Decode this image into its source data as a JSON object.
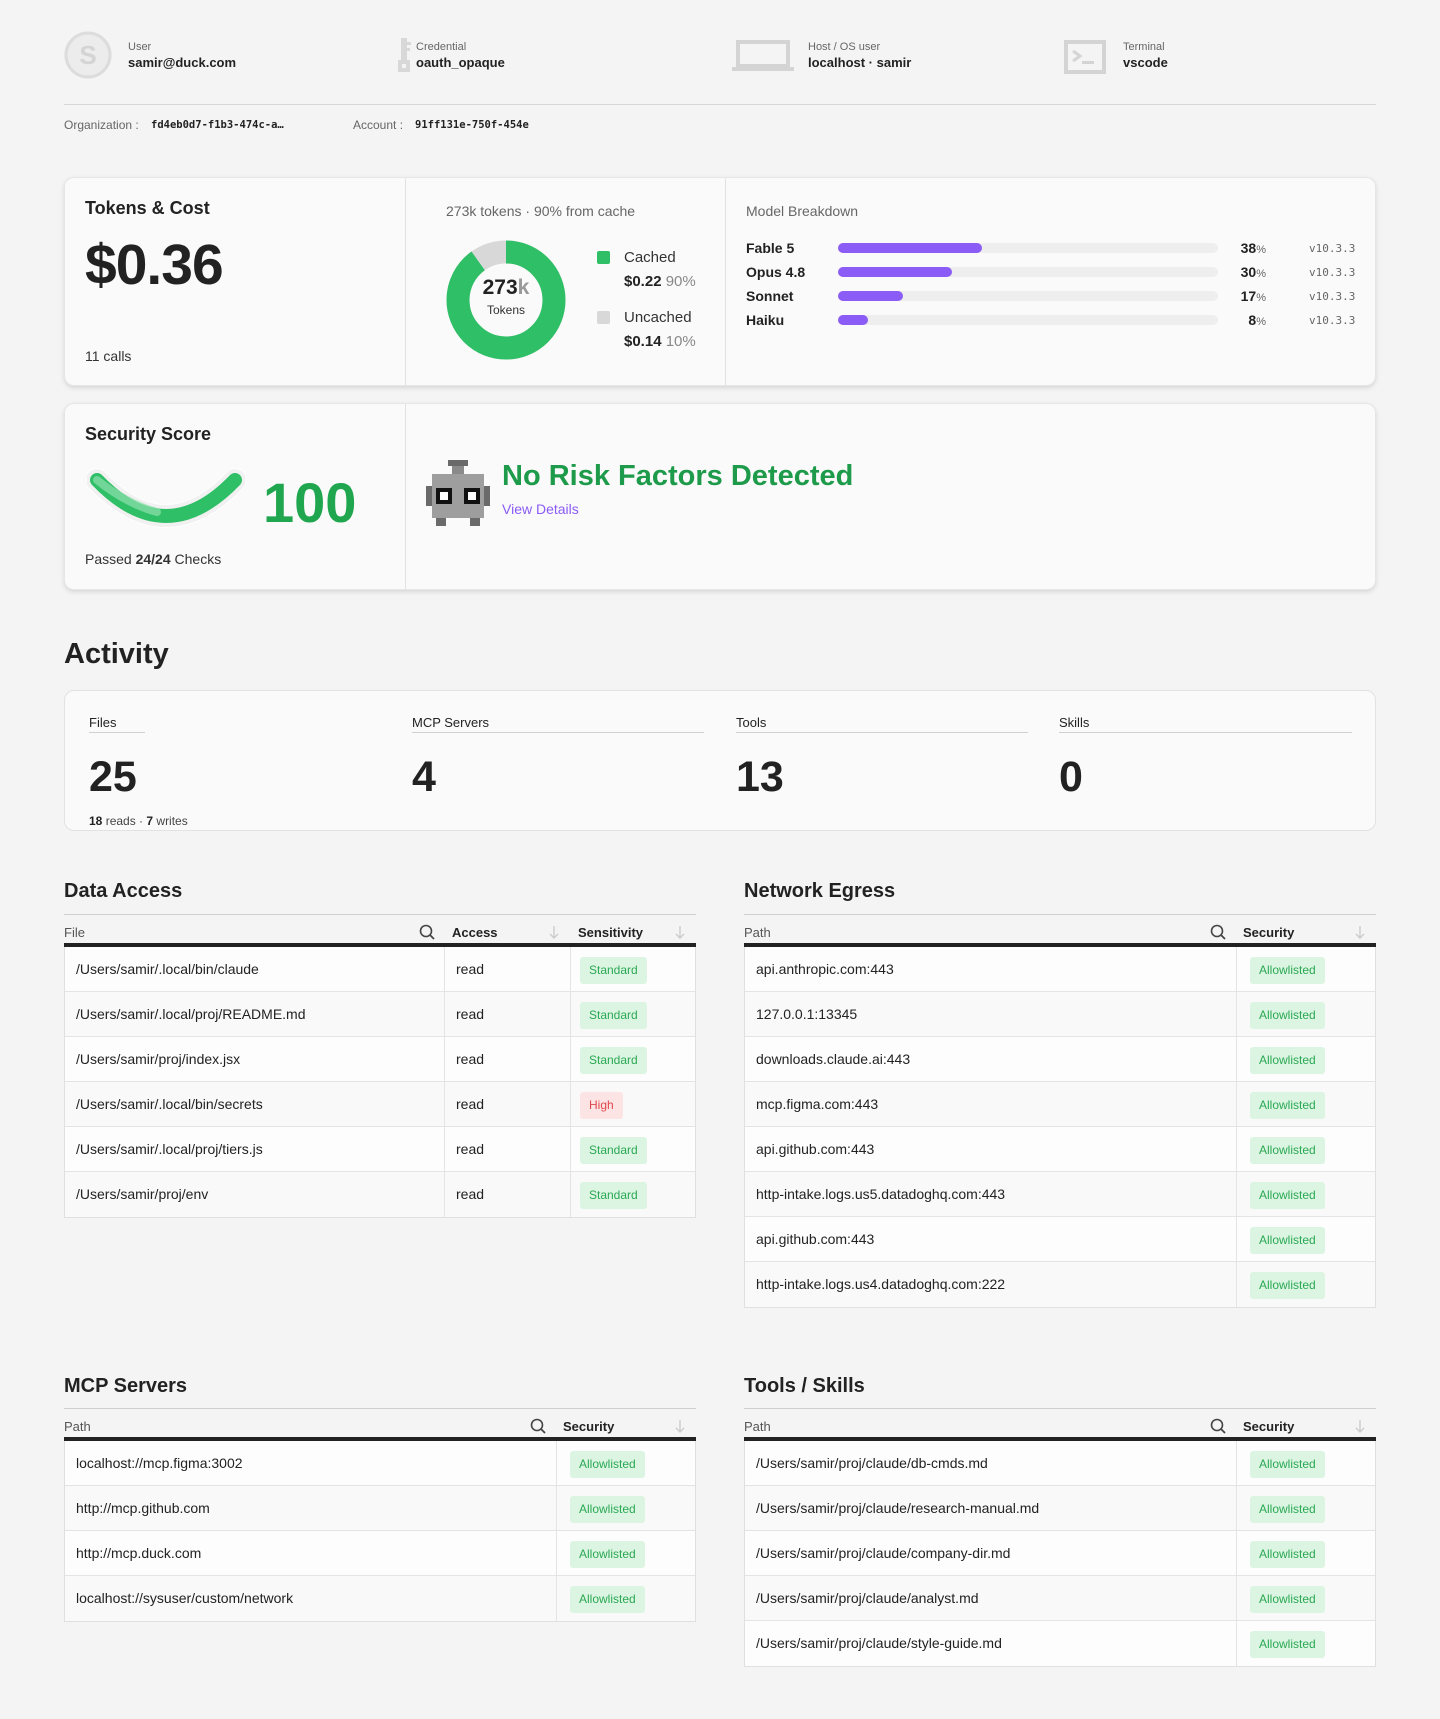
{
  "identity": {
    "user": {
      "label": "User",
      "value": "samir@duck.com",
      "avatar_letter": "S"
    },
    "credential": {
      "label": "Credential",
      "value": "oauth_opaque"
    },
    "host": {
      "label": "Host / OS user",
      "value": "localhost · samir"
    },
    "terminal": {
      "label": "Terminal",
      "value": "vscode"
    },
    "organization": {
      "label": "Organization :",
      "value": "fd4eb0d7-f1b3-474c-a…"
    },
    "account": {
      "label": "Account :",
      "value": "91ff131e-750f-454e"
    }
  },
  "tokens": {
    "title": "Tokens & Cost",
    "cost": "$0.36",
    "calls": "11 calls",
    "summary": "273k tokens · 90% from cache",
    "donut_value": "273",
    "donut_unit": "k",
    "donut_label": "Tokens",
    "cached_fraction": 0.9,
    "cached": {
      "label": "Cached",
      "value": "$0.22",
      "pct": "90%",
      "color": "#2fbf67"
    },
    "uncached": {
      "label": "Uncached",
      "value": "$0.14",
      "pct": "10%",
      "color": "#d8d8d8"
    }
  },
  "model_breakdown": {
    "title": "Model Breakdown",
    "bar_color": "#8b5cf6",
    "models": [
      {
        "name": "Fable 5",
        "pct": 38,
        "pct_label": "38",
        "version": "v10.3.3"
      },
      {
        "name": "Opus 4.8",
        "pct": 30,
        "pct_label": "30",
        "version": "v10.3.3"
      },
      {
        "name": "Sonnet",
        "pct": 17,
        "pct_label": "17",
        "version": "v10.3.3"
      },
      {
        "name": "Haiku",
        "pct": 8,
        "pct_label": "8",
        "version": "v10.3.3"
      }
    ]
  },
  "security": {
    "title": "Security Score",
    "score": "100",
    "passed_prefix": "Passed ",
    "passed_count": "24/24",
    "passed_suffix": " Checks",
    "status": "No Risk Factors Detected",
    "details_link": "View Details",
    "color": "#1fa64f"
  },
  "activity": {
    "title": "Activity",
    "stats": [
      {
        "label": "Files",
        "value": "25",
        "reads": "18",
        "reads_label": " reads · ",
        "writes": "7",
        "writes_label": " writes"
      },
      {
        "label": "MCP Servers",
        "value": "4"
      },
      {
        "label": "Tools",
        "value": "13"
      },
      {
        "label": "Skills",
        "value": "0"
      }
    ]
  },
  "data_access": {
    "title": "Data Access",
    "columns": [
      "File",
      "Access",
      "Sensitivity"
    ],
    "rows": [
      {
        "file": "/Users/samir/.local/bin/claude",
        "access": "read",
        "sensitivity": "Standard",
        "level": "green"
      },
      {
        "file": "/Users/samir/.local/proj/README.md",
        "access": "read",
        "sensitivity": "Standard",
        "level": "green"
      },
      {
        "file": "/Users/samir/proj/index.jsx",
        "access": "read",
        "sensitivity": "Standard",
        "level": "green"
      },
      {
        "file": "/Users/samir/.local/bin/secrets",
        "access": "read",
        "sensitivity": "High",
        "level": "red"
      },
      {
        "file": "/Users/samir/.local/proj/tiers.js",
        "access": "read",
        "sensitivity": "Standard",
        "level": "green"
      },
      {
        "file": "/Users/samir/proj/env",
        "access": "read",
        "sensitivity": "Standard",
        "level": "green"
      }
    ]
  },
  "network_egress": {
    "title": "Network Egress",
    "columns": [
      "Path",
      "Security"
    ],
    "rows": [
      {
        "path": "api.anthropic.com:443",
        "security": "Allowlisted"
      },
      {
        "path": "127.0.0.1:13345",
        "security": "Allowlisted"
      },
      {
        "path": "downloads.claude.ai:443",
        "security": "Allowlisted"
      },
      {
        "path": "mcp.figma.com:443",
        "security": "Allowlisted"
      },
      {
        "path": "api.github.com:443",
        "security": "Allowlisted"
      },
      {
        "path": "http-intake.logs.us5.datadoghq.com:443",
        "security": "Allowlisted"
      },
      {
        "path": "api.github.com:443",
        "security": "Allowlisted"
      },
      {
        "path": "http-intake.logs.us4.datadoghq.com:222",
        "security": "Allowlisted"
      }
    ]
  },
  "mcp_servers": {
    "title": "MCP Servers",
    "columns": [
      "Path",
      "Security"
    ],
    "rows": [
      {
        "path": "localhost://mcp.figma:3002",
        "security": "Allowlisted"
      },
      {
        "path": "http://mcp.github.com",
        "security": "Allowlisted"
      },
      {
        "path": "http://mcp.duck.com",
        "security": "Allowlisted"
      },
      {
        "path": "localhost://sysuser/custom/network",
        "security": "Allowlisted"
      }
    ]
  },
  "tools_skills": {
    "title": "Tools / Skills",
    "columns": [
      "Path",
      "Security"
    ],
    "rows": [
      {
        "path": "/Users/samir/proj/claude/db-cmds.md",
        "security": "Allowlisted"
      },
      {
        "path": "/Users/samir/proj/claude/research-manual.md",
        "security": "Allowlisted"
      },
      {
        "path": "/Users/samir/proj/claude/company-dir.md",
        "security": "Allowlisted"
      },
      {
        "path": "/Users/samir/proj/claude/analyst.md",
        "security": "Allowlisted"
      },
      {
        "path": "/Users/samir/proj/claude/style-guide.md",
        "security": "Allowlisted"
      }
    ]
  },
  "icons": {
    "user": "avatar-letter-icon",
    "credential": "key-icon",
    "host": "laptop-icon",
    "terminal": "terminal-icon",
    "search": "search-icon",
    "sort": "sort-arrow-icon",
    "mascot": "robot-icon"
  }
}
